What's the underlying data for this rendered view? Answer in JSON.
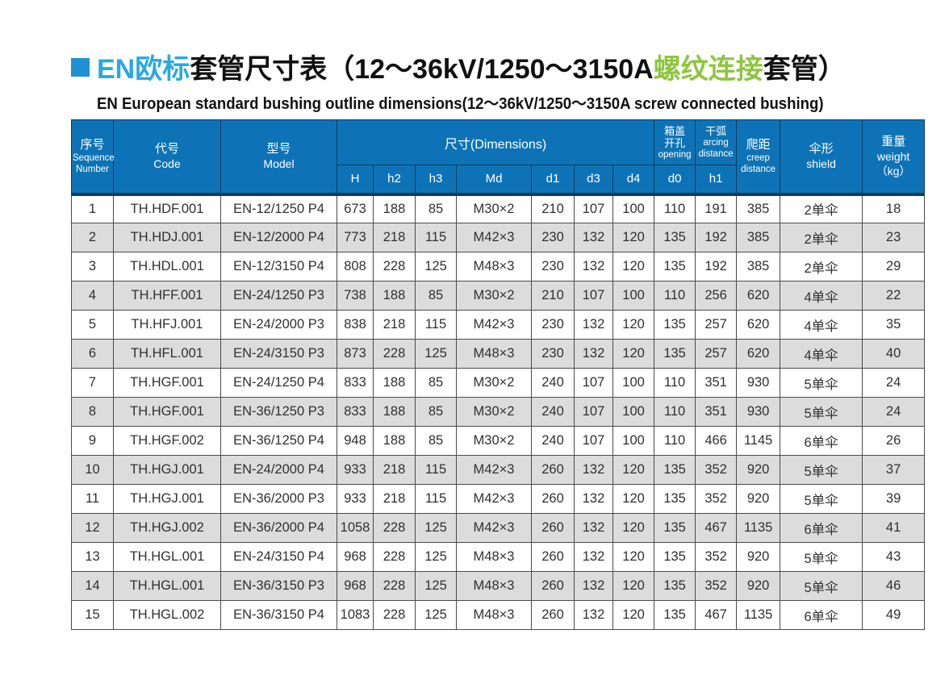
{
  "title": {
    "zh_blue": "EN欧标",
    "zh_black_1": "套管尺寸表（12～36kV/1250～3150A",
    "zh_green": "螺纹连接",
    "zh_black_2": "套管）",
    "subtitle": "EN European standard bushing outline dimensions(12～36kV/1250～3150A screw connected bushing)"
  },
  "colors": {
    "title_blue": "#29a9e1",
    "title_green": "#8dc63f",
    "header_bg": "#0e73b6",
    "header_border": "#0e3c5d",
    "row_alt_bg": "#dcdcdc",
    "body_border": "#4a4a4a"
  },
  "table": {
    "header": {
      "sequence_zh": "序号",
      "sequence_en_1": "Sequence",
      "sequence_en_2": "Number",
      "code_zh": "代号",
      "code_en": "Code",
      "model_zh": "型号",
      "model_en": "Model",
      "dimensions": "尺寸(Dimensions)",
      "dim_cols": [
        "H",
        "h2",
        "h3",
        "Md",
        "d1",
        "d3",
        "d4"
      ],
      "opening_zh_1": "箱盖",
      "opening_zh_2": "开孔",
      "opening_en": "opening",
      "opening_sub": "d0",
      "arcing_zh": "干弧",
      "arcing_en_1": "arcing",
      "arcing_en_2": "distance",
      "arcing_sub": "h1",
      "creep_zh": "爬距",
      "creep_en_1": "creep",
      "creep_en_2": "distance",
      "shield_zh": "伞形",
      "shield_en": "shield",
      "weight_zh": "重量",
      "weight_en": "weight",
      "weight_unit": "（kg）"
    },
    "column_keys": [
      "seq",
      "code",
      "model",
      "H",
      "h2",
      "h3",
      "Md",
      "d1",
      "d3",
      "d4",
      "d0",
      "h1",
      "creep",
      "shield",
      "weight"
    ],
    "rows": [
      [
        "1",
        "TH.HDF.001",
        "EN-12/1250 P4",
        "673",
        "188",
        "85",
        "M30×2",
        "210",
        "107",
        "100",
        "110",
        "191",
        "385",
        "2单伞",
        "18"
      ],
      [
        "2",
        "TH.HDJ.001",
        "EN-12/2000 P4",
        "773",
        "218",
        "115",
        "M42×3",
        "230",
        "132",
        "120",
        "135",
        "192",
        "385",
        "2单伞",
        "23"
      ],
      [
        "3",
        "TH.HDL.001",
        "EN-12/3150 P4",
        "808",
        "228",
        "125",
        "M48×3",
        "230",
        "132",
        "120",
        "135",
        "192",
        "385",
        "2单伞",
        "29"
      ],
      [
        "4",
        "TH.HFF.001",
        "EN-24/1250 P3",
        "738",
        "188",
        "85",
        "M30×2",
        "210",
        "107",
        "100",
        "110",
        "256",
        "620",
        "4单伞",
        "22"
      ],
      [
        "5",
        "TH.HFJ.001",
        "EN-24/2000 P3",
        "838",
        "218",
        "115",
        "M42×3",
        "230",
        "132",
        "120",
        "135",
        "257",
        "620",
        "4单伞",
        "35"
      ],
      [
        "6",
        "TH.HFL.001",
        "EN-24/3150 P3",
        "873",
        "228",
        "125",
        "M48×3",
        "230",
        "132",
        "120",
        "135",
        "257",
        "620",
        "4单伞",
        "40"
      ],
      [
        "7",
        "TH.HGF.001",
        "EN-24/1250 P4",
        "833",
        "188",
        "85",
        "M30×2",
        "240",
        "107",
        "100",
        "110",
        "351",
        "930",
        "5单伞",
        "24"
      ],
      [
        "8",
        "TH.HGF.001",
        "EN-36/1250 P3",
        "833",
        "188",
        "85",
        "M30×2",
        "240",
        "107",
        "100",
        "110",
        "351",
        "930",
        "5单伞",
        "24"
      ],
      [
        "9",
        "TH.HGF.002",
        "EN-36/1250 P4",
        "948",
        "188",
        "85",
        "M30×2",
        "240",
        "107",
        "100",
        "110",
        "466",
        "1145",
        "6单伞",
        "26"
      ],
      [
        "10",
        "TH.HGJ.001",
        "EN-24/2000 P4",
        "933",
        "218",
        "115",
        "M42×3",
        "260",
        "132",
        "120",
        "135",
        "352",
        "920",
        "5单伞",
        "37"
      ],
      [
        "11",
        "TH.HGJ.001",
        "EN-36/2000 P3",
        "933",
        "218",
        "115",
        "M42×3",
        "260",
        "132",
        "120",
        "135",
        "352",
        "920",
        "5单伞",
        "39"
      ],
      [
        "12",
        "TH.HGJ.002",
        "EN-36/2000 P4",
        "1058",
        "228",
        "125",
        "M42×3",
        "260",
        "132",
        "120",
        "135",
        "467",
        "1135",
        "6单伞",
        "41"
      ],
      [
        "13",
        "TH.HGL.001",
        "EN-24/3150 P4",
        "968",
        "228",
        "125",
        "M48×3",
        "260",
        "132",
        "120",
        "135",
        "352",
        "920",
        "5单伞",
        "43"
      ],
      [
        "14",
        "TH.HGL.001",
        "EN-36/3150 P3",
        "968",
        "228",
        "125",
        "M48×3",
        "260",
        "132",
        "120",
        "135",
        "352",
        "920",
        "5单伞",
        "46"
      ],
      [
        "15",
        "TH.HGL.002",
        "EN-36/3150 P4",
        "1083",
        "228",
        "125",
        "M48×3",
        "260",
        "132",
        "120",
        "135",
        "467",
        "1135",
        "6单伞",
        "49"
      ]
    ]
  }
}
